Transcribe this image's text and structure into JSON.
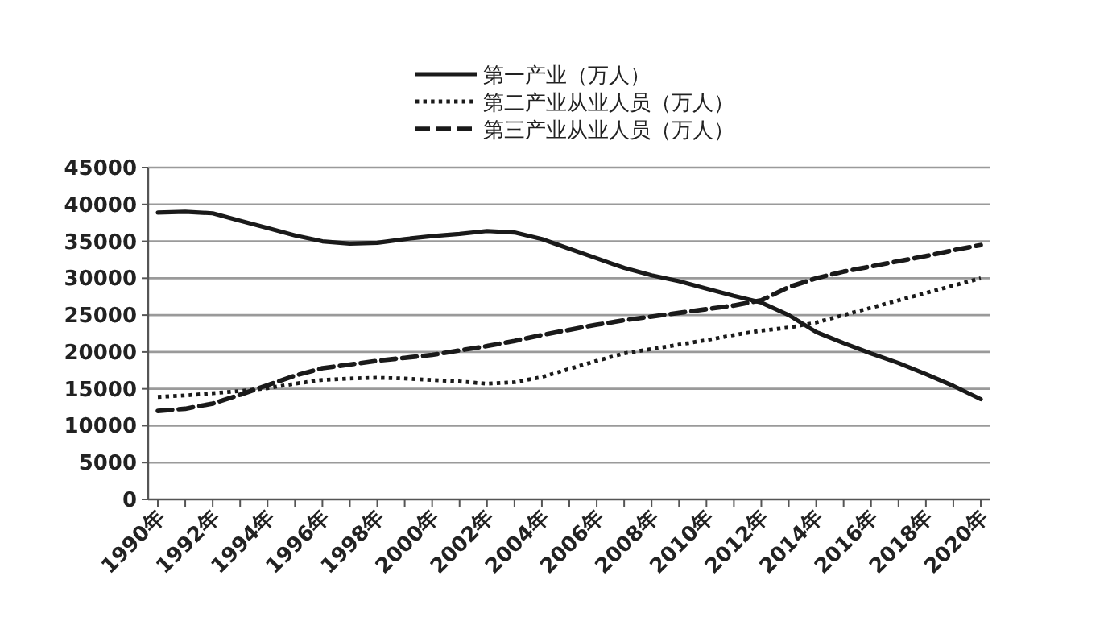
{
  "chart_data": {
    "type": "line",
    "categories": [
      "1990年",
      null,
      "1992年",
      null,
      "1994年",
      null,
      "1996年",
      null,
      "1998年",
      null,
      "2000年",
      null,
      "2002年",
      null,
      "2004年",
      null,
      "2006年",
      null,
      "2008年",
      null,
      "2010年",
      null,
      "2012年",
      null,
      "2014年",
      null,
      "2016年",
      null,
      "2018年",
      null,
      "2020年"
    ],
    "series": [
      {
        "name": "第一产业（万人）",
        "color": "#1a1a1a",
        "line_style": "solid",
        "values": [
          38900,
          39000,
          38800,
          37800,
          36800,
          35800,
          35000,
          34700,
          34800,
          35300,
          35700,
          36000,
          36400,
          36200,
          35300,
          34000,
          32700,
          31400,
          30400,
          29600,
          28600,
          27600,
          26700,
          25000,
          22700,
          21200,
          19800,
          18500,
          17000,
          15400,
          13600
        ]
      },
      {
        "name": "第二产业从业人员（万人）",
        "color": "#1a1a1a",
        "line_style": "dotted",
        "values": [
          13900,
          14100,
          14400,
          14700,
          15100,
          15700,
          16200,
          16400,
          16500,
          16400,
          16200,
          16000,
          15700,
          15900,
          16600,
          17700,
          18800,
          19800,
          20400,
          21000,
          21600,
          22300,
          22900,
          23300,
          24000,
          25000,
          26000,
          27000,
          28000,
          29000,
          30000
        ]
      },
      {
        "name": "第三产业从业人员（万人）",
        "color": "#1a1a1a",
        "line_style": "dashed",
        "values": [
          12000,
          12300,
          13000,
          14200,
          15500,
          16800,
          17800,
          18300,
          18800,
          19200,
          19600,
          20200,
          20800,
          21500,
          22300,
          23000,
          23700,
          24300,
          24800,
          25300,
          25800,
          26300,
          27000,
          28800,
          30000,
          30900,
          31600,
          32300,
          33000,
          33800,
          34500
        ]
      }
    ],
    "ylim": [
      0,
      45000
    ],
    "yticks": [
      0,
      5000,
      10000,
      15000,
      20000,
      25000,
      30000,
      35000,
      40000,
      45000
    ],
    "grid": "y",
    "legend": "top",
    "marker": "none"
  }
}
